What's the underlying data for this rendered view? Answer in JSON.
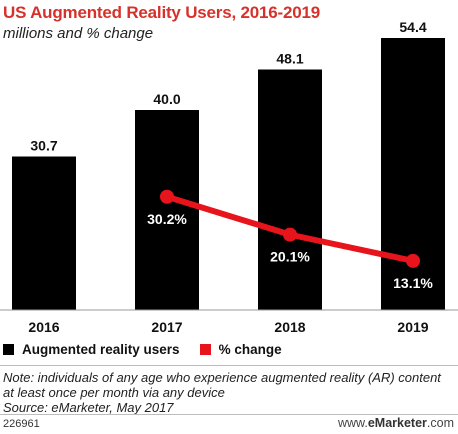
{
  "title": "US Augmented Reality Users, 2016-2019",
  "subtitle": "millions and % change",
  "chart_data": {
    "type": "bar",
    "categories": [
      "2016",
      "2017",
      "2018",
      "2019"
    ],
    "series": [
      {
        "name": "Augmented reality users",
        "type": "bar",
        "values": [
          30.7,
          40.0,
          48.1,
          54.4
        ],
        "labels": [
          "30.7",
          "40.0",
          "48.1",
          "54.4"
        ],
        "color": "#000000"
      },
      {
        "name": "% change",
        "type": "line",
        "values": [
          null,
          30.2,
          20.1,
          13.1
        ],
        "labels": [
          "",
          "30.2%",
          "20.1%",
          "13.1%"
        ],
        "color": "#e8141c"
      }
    ],
    "ylim": [
      0,
      60
    ],
    "pct_ylim": [
      0,
      80
    ],
    "grid": false,
    "legend_position": "bottom"
  },
  "legend": {
    "bars_label": "Augmented reality users",
    "line_label": "% change",
    "bars_color": "#000000",
    "line_color": "#e8141c"
  },
  "note": "Note: individuals of any age who experience augmented reality (AR) content at least once per month via any device",
  "source": "Source: eMarketer, May 2017",
  "footer": {
    "id": "226961",
    "brand_prefix": "www.",
    "brand_name": "eMarketer",
    "brand_suffix": ".com"
  }
}
